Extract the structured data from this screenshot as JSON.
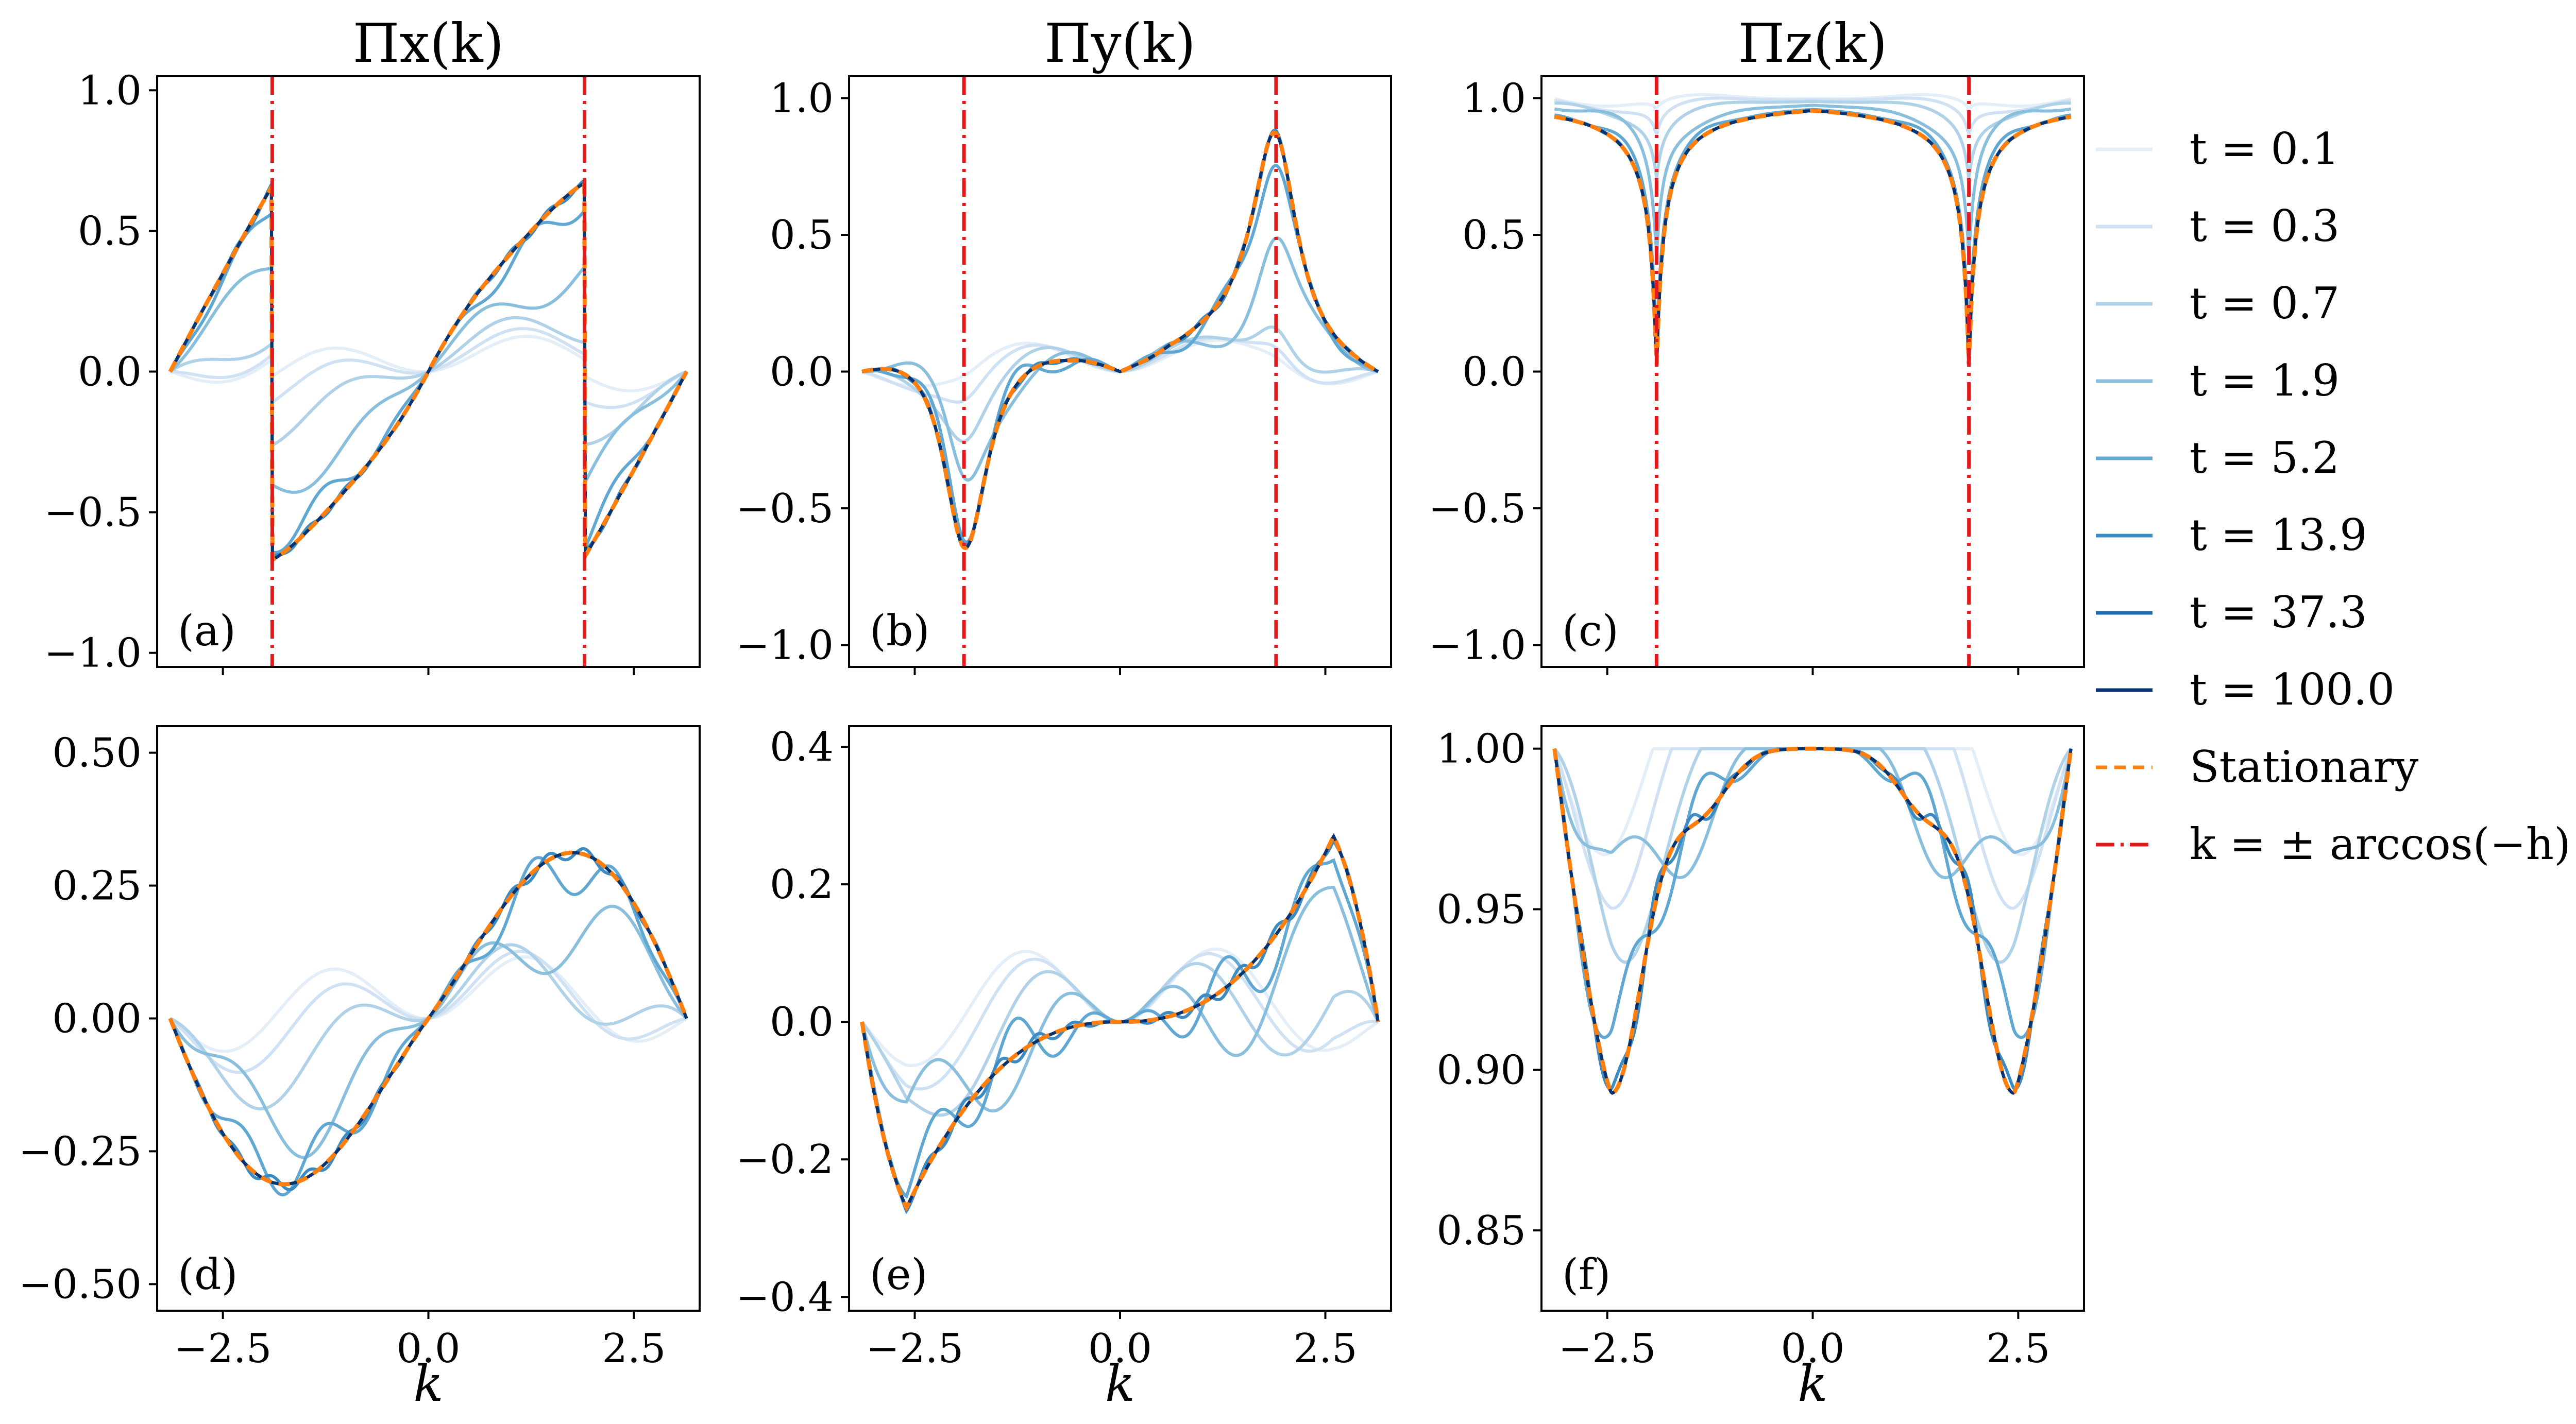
{
  "chart_data": {
    "type": "line",
    "figure_layout": "2 rows x 3 columns",
    "colors": {
      "time_ramp": [
        "#e3eef8",
        "#cfe1f2",
        "#b0d2e8",
        "#89bedc",
        "#60a7d2",
        "#3c8bc3",
        "#1c69ad",
        "#08336e"
      ],
      "stationary": "#ff7f0e",
      "arccos_line": "#e31a1c",
      "axes": "#000000"
    },
    "legend": {
      "entries": [
        "t = 0.1",
        "t = 0.3",
        "t = 0.7",
        "t = 1.9",
        "t = 5.2",
        "t = 13.9",
        "t = 37.3",
        "t = 100.0",
        "Stationary",
        "k = ± arccos(−h)"
      ],
      "times": [
        0.1,
        0.3,
        0.7,
        1.9,
        5.2,
        13.9,
        37.3,
        100.0
      ],
      "placement": "right, outside plots"
    },
    "column_titles": [
      "Πₓ(k)",
      "Π_y(k)",
      "Π_z(k)"
    ],
    "column_title_text": [
      "Πx(k)",
      "Πy(k)",
      "Πz(k)"
    ],
    "xlabel": "k",
    "xlim": [
      -3.3,
      3.3
    ],
    "x_ticks": [
      -2.5,
      0.0,
      2.5
    ],
    "x_tick_labels": [
      "−2.5",
      "0.0",
      "2.5"
    ],
    "k_star": 1.9,
    "panels": [
      {
        "id": "a",
        "label": "(a)",
        "component": "x",
        "row": 0,
        "col": 0,
        "ylim": [
          -1.05,
          1.05
        ],
        "y_ticks": [
          -1.0,
          -0.5,
          0.0,
          0.5,
          1.0
        ],
        "y_tick_labels": [
          "−1.0",
          "−0.5",
          "0.0",
          "0.5",
          "1.0"
        ],
        "vlines": true
      },
      {
        "id": "b",
        "label": "(b)",
        "component": "y",
        "row": 0,
        "col": 1,
        "ylim": [
          -1.08,
          1.08
        ],
        "y_ticks": [
          -1.0,
          -0.5,
          0.0,
          0.5,
          1.0
        ],
        "y_tick_labels": [
          "−1.0",
          "−0.5",
          "0.0",
          "0.5",
          "1.0"
        ],
        "vlines": true
      },
      {
        "id": "c",
        "label": "(c)",
        "component": "z",
        "row": 0,
        "col": 2,
        "ylim": [
          -1.08,
          1.08
        ],
        "y_ticks": [
          -1.0,
          -0.5,
          0.0,
          0.5,
          1.0
        ],
        "y_tick_labels": [
          "−1.0",
          "−0.5",
          "0.0",
          "0.5",
          "1.0"
        ],
        "vlines": true
      },
      {
        "id": "d",
        "label": "(d)",
        "component": "x",
        "row": 1,
        "col": 0,
        "ylim": [
          -0.55,
          0.55
        ],
        "y_ticks": [
          -0.5,
          -0.25,
          0.0,
          0.25,
          0.5
        ],
        "y_tick_labels": [
          "−0.50",
          "−0.25",
          "0.00",
          "0.25",
          "0.50"
        ],
        "vlines": false
      },
      {
        "id": "e",
        "label": "(e)",
        "component": "y",
        "row": 1,
        "col": 1,
        "ylim": [
          -0.42,
          0.43
        ],
        "y_ticks": [
          -0.4,
          -0.2,
          0.0,
          0.2,
          0.4
        ],
        "y_tick_labels": [
          "−0.4",
          "−0.2",
          "0.0",
          "0.2",
          "0.4"
        ],
        "vlines": false
      },
      {
        "id": "f",
        "label": "(f)",
        "component": "z",
        "row": 1,
        "col": 2,
        "ylim": [
          0.825,
          1.007
        ],
        "y_ticks": [
          0.85,
          0.9,
          0.95,
          1.0
        ],
        "y_tick_labels": [
          "0.85",
          "0.90",
          "0.95",
          "1.00"
        ],
        "vlines": false
      }
    ]
  }
}
